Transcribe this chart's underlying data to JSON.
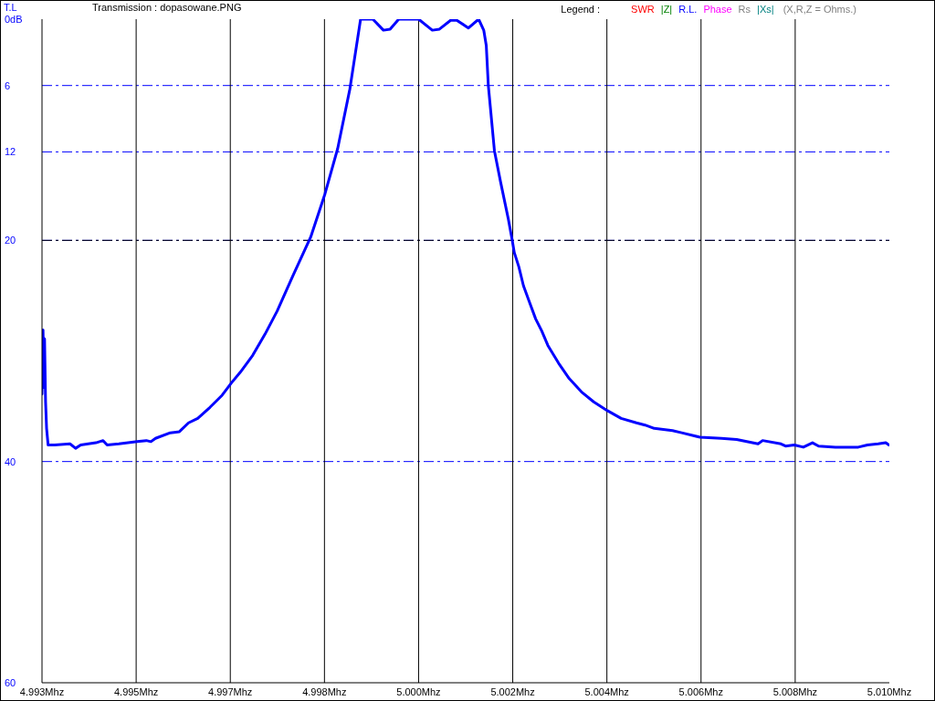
{
  "chart_data": {
    "type": "line",
    "title": "Transmission : dopasowane.PNG",
    "ylabel": "T.L",
    "legend_title": "Legend :",
    "annotations": [
      "(X,R,Z = Ohms.)"
    ],
    "x": [
      4.9929,
      4.99292,
      4.99294,
      4.99295,
      4.99297,
      4.99299,
      4.99302,
      4.99315,
      4.99345,
      4.99356,
      4.99366,
      4.99396,
      4.9941,
      4.99418,
      4.99441,
      4.99477,
      4.99495,
      4.99504,
      4.99513,
      4.99542,
      4.9956,
      4.99578,
      4.99596,
      4.9962,
      4.99644,
      4.99662,
      4.9968,
      4.99704,
      4.99728,
      4.99752,
      4.99783,
      4.99818,
      4.99846,
      4.99871,
      4.99895,
      4.99916,
      4.9994,
      4.99961,
      4.99974,
      4.99991,
      5.0003,
      5.00057,
      5.00071,
      5.00093,
      5.00105,
      5.00128,
      5.00148,
      5.00158,
      5.00163,
      5.00167,
      5.00179,
      5.00191,
      5.00206,
      5.00214,
      5.00218,
      5.00227,
      5.00236,
      5.00248,
      5.0026,
      5.00272,
      5.00284,
      5.00305,
      5.00326,
      5.0035,
      5.00374,
      5.00401,
      5.00428,
      5.00458,
      5.00475,
      5.00493,
      5.00529,
      5.00547,
      5.00583,
      5.00625,
      5.00655,
      5.00697,
      5.00706,
      5.00742,
      5.00751,
      5.00768,
      5.00786,
      5.00804,
      5.00816,
      5.00849,
      5.00894,
      5.00912,
      5.00933,
      5.00948,
      5.00954
    ],
    "series": [
      {
        "color": "#0000ff",
        "values": [
          33.9,
          28.1,
          33.3,
          28.9,
          34.6,
          37.0,
          38.5,
          38.5,
          38.4,
          38.8,
          38.5,
          38.3,
          38.1,
          38.5,
          38.4,
          38.2,
          38.1,
          38.2,
          37.9,
          37.4,
          37.3,
          36.5,
          36.1,
          35.1,
          34.0,
          32.9,
          31.9,
          30.4,
          28.5,
          26.4,
          23.2,
          19.7,
          15.8,
          11.7,
          6.3,
          0,
          0,
          1.0,
          0.9,
          0,
          0,
          1.0,
          0.9,
          0.1,
          0.1,
          0.8,
          0,
          1.0,
          2.4,
          6.0,
          11.9,
          14.7,
          18.0,
          20.0,
          21.1,
          22.4,
          24.1,
          25.6,
          27.1,
          28.2,
          29.5,
          31.1,
          32.5,
          33.7,
          34.6,
          35.4,
          36.1,
          36.5,
          36.7,
          37.0,
          37.2,
          37.4,
          37.8,
          37.9,
          38.0,
          38.4,
          38.1,
          38.4,
          38.6,
          38.5,
          38.7,
          38.3,
          38.6,
          38.7,
          38.7,
          38.5,
          38.4,
          38.3,
          38.5
        ]
      },
      {
        "name": "SWR",
        "color": "#ff0000",
        "values": [
          null,
          null,
          null,
          null,
          null,
          null,
          null,
          null,
          null,
          null,
          null,
          null,
          null,
          null,
          null,
          null,
          null,
          null,
          null,
          null,
          null,
          null,
          null,
          null,
          null,
          null,
          null,
          null,
          null,
          null,
          null,
          null,
          null,
          null,
          null,
          null,
          null,
          null,
          null,
          null,
          null,
          null,
          null,
          null,
          null,
          null,
          null,
          null,
          null,
          null,
          null,
          null,
          null,
          null,
          null,
          null,
          null,
          null,
          null,
          null,
          null,
          null,
          null,
          null,
          null,
          null,
          null,
          null,
          null,
          null,
          null,
          null,
          null,
          null,
          null,
          null,
          null,
          null,
          null,
          null,
          null,
          null,
          null,
          null,
          null,
          null,
          null,
          null,
          null
        ]
      },
      {
        "name": "|Z|",
        "color": "#008000",
        "values": [
          null,
          null,
          null,
          null,
          null,
          null,
          null,
          null,
          null,
          null,
          null,
          null,
          null,
          null,
          null,
          null,
          null,
          null,
          null,
          null,
          null,
          null,
          null,
          null,
          null,
          null,
          null,
          null,
          null,
          null,
          null,
          null,
          null,
          null,
          null,
          null,
          null,
          null,
          null,
          null,
          null,
          null,
          null,
          null,
          null,
          null,
          null,
          null,
          null,
          null,
          null,
          null,
          null,
          null,
          null,
          null,
          null,
          null,
          null,
          null,
          null,
          null,
          null,
          null,
          null,
          null,
          null,
          null,
          null,
          null,
          null,
          null,
          null,
          null,
          null,
          null,
          null,
          null,
          null,
          null,
          null,
          null,
          null,
          null,
          null,
          null,
          null,
          null,
          null
        ]
      },
      {
        "name": "R.L.",
        "color": "#0000ff",
        "values": [
          null,
          null,
          null,
          null,
          null,
          null,
          null,
          null,
          null,
          null,
          null,
          null,
          null,
          null,
          null,
          null,
          null,
          null,
          null,
          null,
          null,
          null,
          null,
          null,
          null,
          null,
          null,
          null,
          null,
          null,
          null,
          null,
          null,
          null,
          null,
          null,
          null,
          null,
          null,
          null,
          null,
          null,
          null,
          null,
          null,
          null,
          null,
          null,
          null,
          null,
          null,
          null,
          null,
          null,
          null,
          null,
          null,
          null,
          null,
          null,
          null,
          null,
          null,
          null,
          null,
          null,
          null,
          null,
          null,
          null,
          null,
          null,
          null,
          null,
          null,
          null,
          null,
          null,
          null,
          null,
          null,
          null,
          null,
          null,
          null,
          null,
          null,
          null,
          null
        ]
      },
      {
        "name": "Phase",
        "color": "#ff00ff",
        "values": [
          null,
          null,
          null,
          null,
          null,
          null,
          null,
          null,
          null,
          null,
          null,
          null,
          null,
          null,
          null,
          null,
          null,
          null,
          null,
          null,
          null,
          null,
          null,
          null,
          null,
          null,
          null,
          null,
          null,
          null,
          null,
          null,
          null,
          null,
          null,
          null,
          null,
          null,
          null,
          null,
          null,
          null,
          null,
          null,
          null,
          null,
          null,
          null,
          null,
          null,
          null,
          null,
          null,
          null,
          null,
          null,
          null,
          null,
          null,
          null,
          null,
          null,
          null,
          null,
          null,
          null,
          null,
          null,
          null,
          null,
          null,
          null,
          null,
          null,
          null,
          null,
          null,
          null,
          null,
          null,
          null,
          null,
          null,
          null,
          null,
          null,
          null,
          null,
          null
        ]
      },
      {
        "name": "Rs",
        "color": "#808080",
        "values": [
          null,
          null,
          null,
          null,
          null,
          null,
          null,
          null,
          null,
          null,
          null,
          null,
          null,
          null,
          null,
          null,
          null,
          null,
          null,
          null,
          null,
          null,
          null,
          null,
          null,
          null,
          null,
          null,
          null,
          null,
          null,
          null,
          null,
          null,
          null,
          null,
          null,
          null,
          null,
          null,
          null,
          null,
          null,
          null,
          null,
          null,
          null,
          null,
          null,
          null,
          null,
          null,
          null,
          null,
          null,
          null,
          null,
          null,
          null,
          null,
          null,
          null,
          null,
          null,
          null,
          null,
          null,
          null,
          null,
          null,
          null,
          null,
          null,
          null,
          null,
          null,
          null,
          null,
          null,
          null,
          null,
          null,
          null,
          null,
          null,
          null,
          null,
          null,
          null
        ]
      },
      {
        "name": "|Xs|",
        "color": "#008080",
        "values": [
          null,
          null,
          null,
          null,
          null,
          null,
          null,
          null,
          null,
          null,
          null,
          null,
          null,
          null,
          null,
          null,
          null,
          null,
          null,
          null,
          null,
          null,
          null,
          null,
          null,
          null,
          null,
          null,
          null,
          null,
          null,
          null,
          null,
          null,
          null,
          null,
          null,
          null,
          null,
          null,
          null,
          null,
          null,
          null,
          null,
          null,
          null,
          null,
          null,
          null,
          null,
          null,
          null,
          null,
          null,
          null,
          null,
          null,
          null,
          null,
          null,
          null,
          null,
          null,
          null,
          null,
          null,
          null,
          null,
          null,
          null,
          null,
          null,
          null,
          null,
          null,
          null,
          null,
          null,
          null,
          null,
          null,
          null,
          null,
          null,
          null,
          null,
          null,
          null
        ]
      }
    ],
    "xlim": [
      4.9929,
      5.00955
    ],
    "xticks": [
      {
        "value": 4.9929,
        "label": "4.993Mhz"
      },
      {
        "value": 4.99475,
        "label": "4.995Mhz"
      },
      {
        "value": 4.9966,
        "label": "4.997Mhz"
      },
      {
        "value": 4.99845,
        "label": "4.998Mhz"
      },
      {
        "value": 5.0003,
        "label": "5.000Mhz"
      },
      {
        "value": 5.00215,
        "label": "5.002Mhz"
      },
      {
        "value": 5.004,
        "label": "5.004Mhz"
      },
      {
        "value": 5.00585,
        "label": "5.006Mhz"
      },
      {
        "value": 5.0077,
        "label": "5.008Mhz"
      },
      {
        "value": 5.00955,
        "label": "5.010Mhz"
      }
    ],
    "ylim": [
      60,
      0
    ],
    "yticks": [
      {
        "value": 0,
        "label": "0dB"
      },
      6,
      12,
      20,
      40,
      60
    ],
    "grid": true,
    "ref_lines": [
      {
        "axis": "y",
        "value": 20,
        "color": "#000000",
        "line_style": "dashed"
      }
    ]
  }
}
